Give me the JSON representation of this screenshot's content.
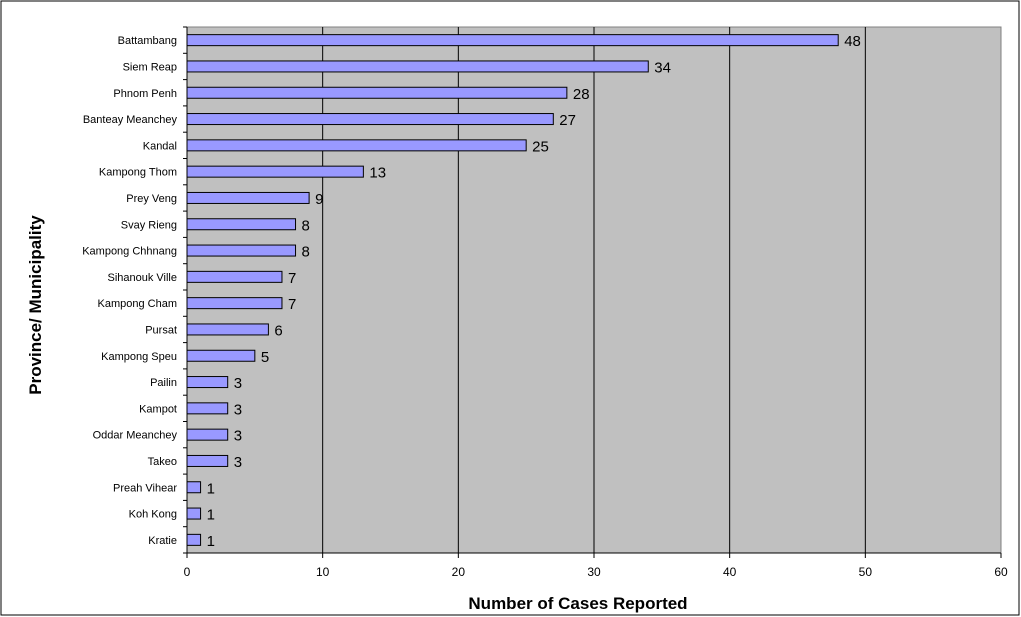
{
  "chart_data": {
    "type": "bar",
    "orientation": "horizontal",
    "title": "",
    "xlabel": "Number of Cases Reported",
    "ylabel": "Province/ Municipality",
    "xlim": [
      0,
      60
    ],
    "xticks": [
      0,
      10,
      20,
      30,
      40,
      50,
      60
    ],
    "grid": "vertical major gridlines",
    "legend": "none",
    "categories": [
      "Battambang",
      "Siem Reap",
      "Phnom Penh",
      "Banteay Meanchey",
      "Kandal",
      "Kampong Thom",
      "Prey Veng",
      "Svay Rieng",
      "Kampong Chhnang",
      "Sihanouk Ville",
      "Kampong Cham",
      "Pursat",
      "Kampong Speu",
      "Pailin",
      "Kampot",
      "Oddar Meanchey",
      "Takeo",
      "Preah Vihear",
      "Koh Kong",
      "Kratie"
    ],
    "values": [
      48,
      34,
      28,
      27,
      25,
      13,
      9,
      8,
      8,
      7,
      7,
      6,
      5,
      3,
      3,
      3,
      3,
      1,
      1,
      1
    ],
    "colors": {
      "bar_fill": "#9999ff",
      "bar_stroke": "#000000",
      "plot_background": "#c0c0c0",
      "gridline": "#000000"
    }
  }
}
